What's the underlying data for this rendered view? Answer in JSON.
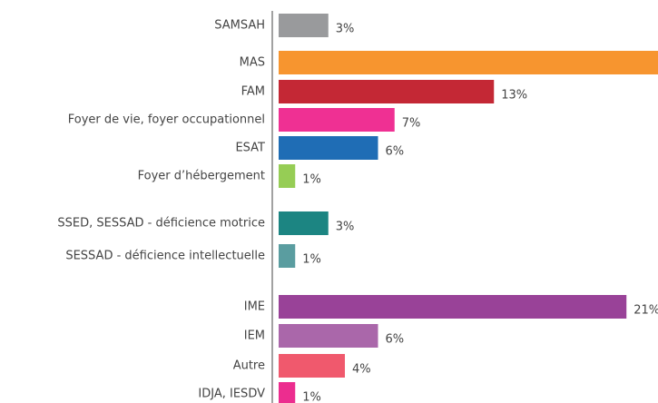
{
  "chart_data": {
    "type": "bar",
    "orientation": "horizontal",
    "categories": [
      "SAMSAH",
      "MAS",
      "FAM",
      "Foyer de vie, foyer occupationnel",
      "ESAT",
      "Foyer d’hébergement",
      "SSED, SESSAD - déficience motrice",
      "SESSAD - déficience intellectuelle",
      "IME",
      "IEM",
      "Autre",
      "IDJA, IESDV"
    ],
    "values": [
      3,
      23,
      13,
      7,
      6,
      1,
      3,
      1,
      21,
      6,
      4,
      1
    ],
    "value_labels": [
      "3%",
      null,
      "13%",
      "7%",
      "6%",
      "1%",
      "3%",
      "1%",
      "21%",
      "6%",
      "4%",
      "1%"
    ],
    "colors": [
      "#999a9c",
      "#f7952f",
      "#c42835",
      "#ef3093",
      "#1f6db5",
      "#96cd55",
      "#1c8582",
      "#5a9da0",
      "#994298",
      "#aa67aa",
      "#f0596d",
      "#ec2d8f"
    ]
  }
}
